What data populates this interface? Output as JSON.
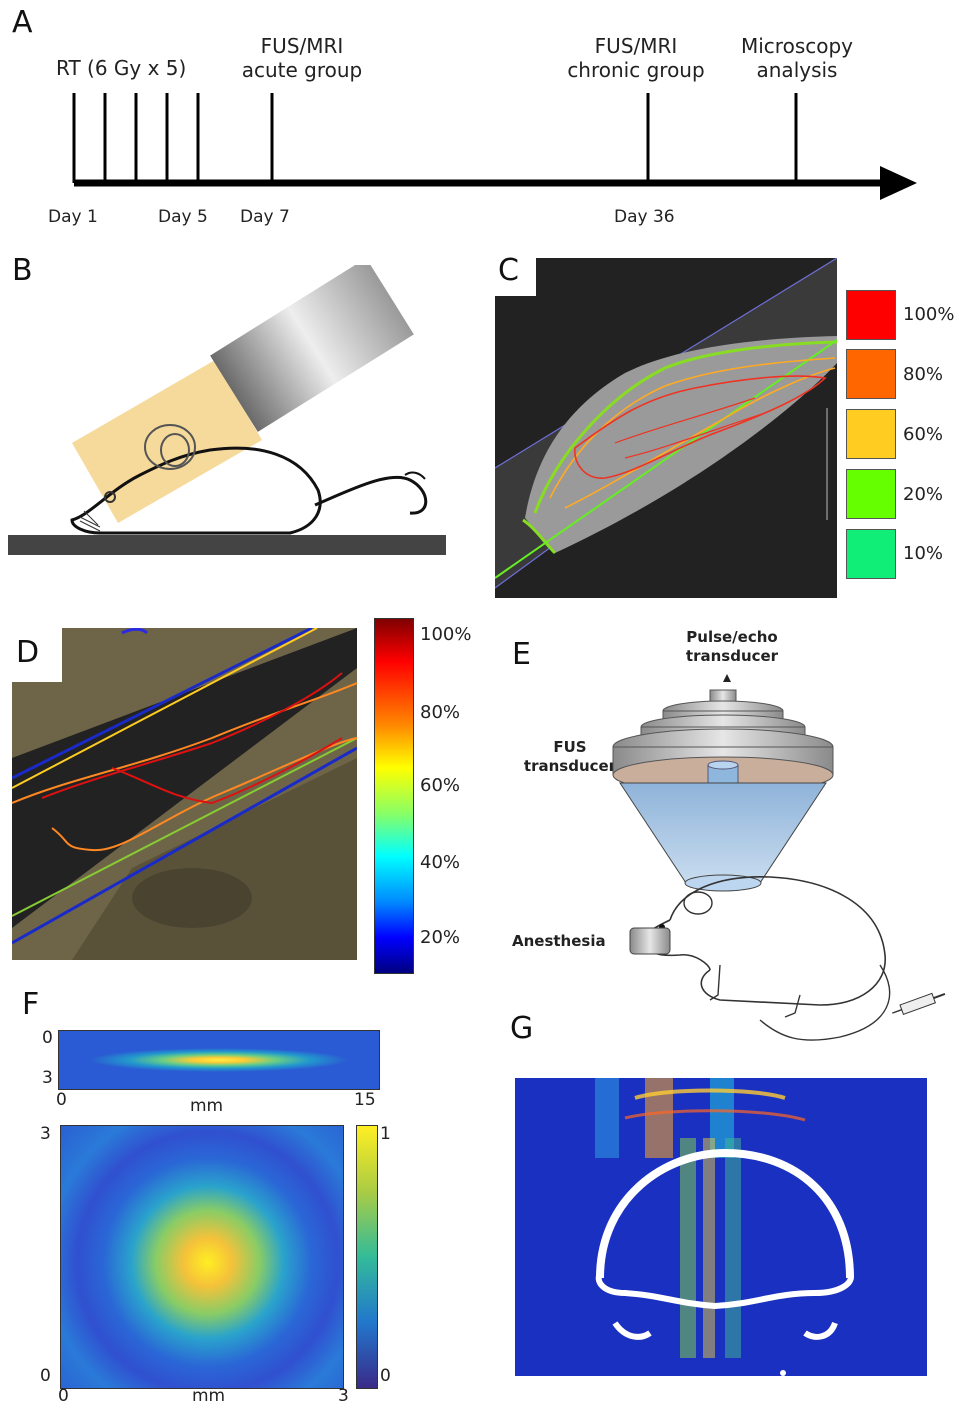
{
  "panels": {
    "a": {
      "letter": "A",
      "events": {
        "rt": "RT (6 Gy x 5)",
        "fus_acute": [
          "FUS/MRI",
          "acute group"
        ],
        "fus_chronic": [
          "FUS/MRI",
          "chronic group"
        ],
        "microscopy": [
          "Microscopy",
          "analysis"
        ]
      },
      "days": {
        "day1": "Day 1",
        "day5": "Day 5",
        "day7": "Day 7",
        "day36": "Day 36"
      }
    },
    "b": {
      "letter": "B"
    },
    "c": {
      "letter": "C",
      "legend": [
        {
          "label": "100%",
          "color": "#ff0000"
        },
        {
          "label": "80%",
          "color": "#ff6600"
        },
        {
          "label": "60%",
          "color": "#ffcc22"
        },
        {
          "label": "20%",
          "color": "#66ff00"
        },
        {
          "label": "10%",
          "color": "#11ee77"
        }
      ]
    },
    "d": {
      "letter": "D",
      "colorbar_ticks": [
        "100%",
        "80%",
        "60%",
        "40%",
        "20%"
      ]
    },
    "e": {
      "letter": "E",
      "pulse_echo": [
        "Pulse/echo",
        "transducer"
      ],
      "fus": [
        "FUS",
        "transducer"
      ],
      "anesthesia": "Anesthesia"
    },
    "f": {
      "letter": "F",
      "top_plot": {
        "y_ticks": [
          "0",
          "3"
        ],
        "x_ticks": [
          "0",
          "15"
        ],
        "x_unit": "mm"
      },
      "bottom_plot": {
        "y_ticks": [
          "3",
          "0"
        ],
        "x_ticks": [
          "0",
          "3"
        ],
        "x_unit": "mm"
      },
      "colorbar": {
        "max": "1",
        "min": "0"
      }
    },
    "g": {
      "letter": "G"
    }
  }
}
